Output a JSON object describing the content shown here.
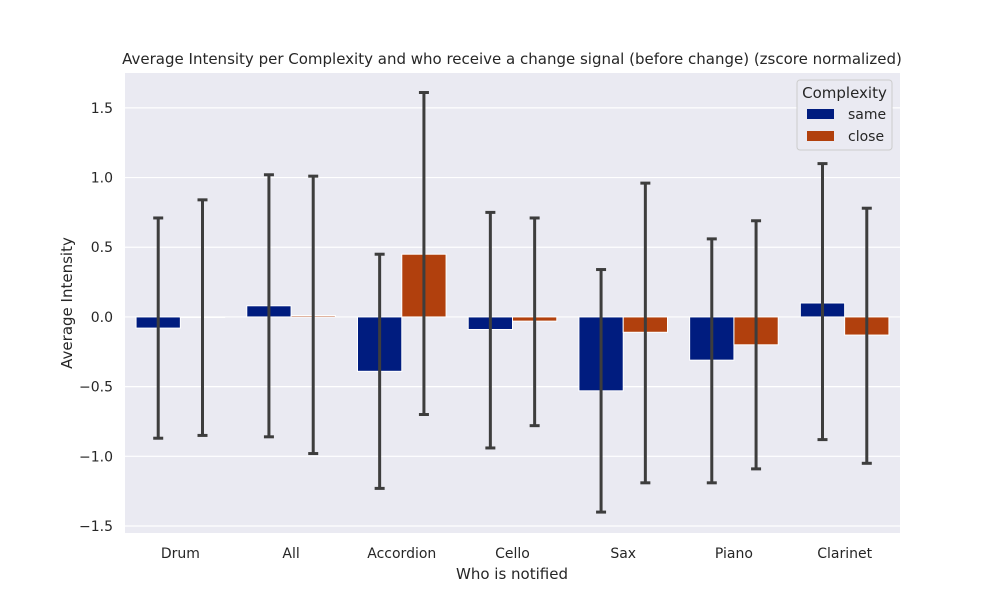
{
  "chart_data": {
    "type": "bar",
    "title": "Average Intensity per Complexity and who receive a change signal (before change) (zscore normalized)",
    "xlabel": "Who is notified",
    "ylabel": "Average Intensity",
    "categories": [
      "Drum",
      "All",
      "Accordion",
      "Cello",
      "Sax",
      "Piano",
      "Clarinet"
    ],
    "ylim": [
      -1.55,
      1.75
    ],
    "yticks": [
      "1.5",
      "1.0",
      "0.5",
      "0.0",
      "−0.5",
      "−1.0",
      "−1.5"
    ],
    "ytick_values": [
      1.5,
      1.0,
      0.5,
      0.0,
      -0.5,
      -1.0,
      -1.5
    ],
    "grid": true,
    "legend": {
      "title": "Complexity",
      "placement": "top-right"
    },
    "series": [
      {
        "name": "same",
        "color": "#001c7f",
        "values": [
          -0.08,
          0.08,
          -0.39,
          -0.09,
          -0.53,
          -0.31,
          0.1
        ],
        "err_low": [
          -0.87,
          -0.86,
          -1.23,
          -0.94,
          -1.4,
          -1.19,
          -0.88
        ],
        "err_high": [
          0.71,
          1.02,
          0.45,
          0.75,
          0.34,
          0.56,
          1.1
        ]
      },
      {
        "name": "close",
        "color": "#b1400d",
        "values": [
          0.0,
          0.01,
          0.45,
          -0.03,
          -0.11,
          -0.2,
          -0.13
        ],
        "err_low": [
          -0.85,
          -0.98,
          -0.7,
          -0.78,
          -1.19,
          -1.09,
          -1.05
        ],
        "err_high": [
          0.84,
          1.01,
          1.61,
          0.71,
          0.96,
          0.69,
          0.78
        ]
      }
    ]
  }
}
